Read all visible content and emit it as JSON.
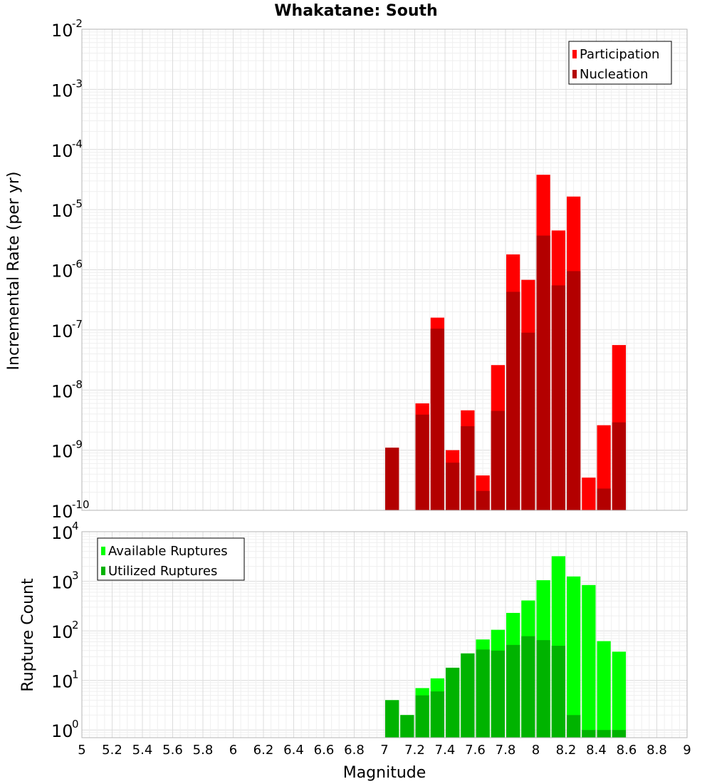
{
  "chart_data": [
    {
      "type": "bar",
      "title": "Whakatane: South",
      "xlabel": "",
      "ylabel": "Incremental Rate (per yr)",
      "yscale": "log",
      "ylim": [
        1e-10,
        0.01
      ],
      "xlim": [
        5,
        9
      ],
      "grid": true,
      "legend_position": "top-right",
      "ytick_labels": [
        {
          "base": "10",
          "exp": "-2"
        },
        {
          "base": "10",
          "exp": "-3"
        },
        {
          "base": "10",
          "exp": "-4"
        },
        {
          "base": "10",
          "exp": "-5"
        },
        {
          "base": "10",
          "exp": "-6"
        },
        {
          "base": "10",
          "exp": "-7"
        },
        {
          "base": "10",
          "exp": "-8"
        },
        {
          "base": "10",
          "exp": "-9"
        },
        {
          "base": "10",
          "exp": "-10"
        }
      ],
      "x": [
        7.0,
        7.1,
        7.2,
        7.3,
        7.4,
        7.5,
        7.6,
        7.7,
        7.8,
        7.9,
        8.0,
        8.1,
        8.2,
        8.3,
        8.4,
        8.5
      ],
      "series": [
        {
          "name": "Participation",
          "color": "#ff0000",
          "values": [
            1.1e-09,
            null,
            6e-09,
            1.6e-07,
            1e-09,
            4.6e-09,
            3.8e-10,
            2.6e-08,
            1.8e-06,
            6.8e-07,
            3.8e-05,
            4.5e-06,
            1.65e-05,
            3.5e-10,
            2.6e-09,
            5.6e-08
          ]
        },
        {
          "name": "Nucleation",
          "color": "#b30000",
          "values": [
            1.1e-09,
            null,
            3.9e-09,
            1.05e-07,
            6.2e-10,
            2.5e-09,
            2.1e-10,
            4.5e-09,
            4.3e-07,
            9e-08,
            3.7e-06,
            5.5e-07,
            9.5e-07,
            null,
            2.3e-10,
            2.9e-09
          ]
        }
      ]
    },
    {
      "type": "bar",
      "title": "",
      "xlabel": "Magnitude",
      "ylabel": "Rupture Count",
      "yscale": "log",
      "ylim": [
        0.7,
        10000
      ],
      "xlim": [
        5,
        9
      ],
      "grid": true,
      "legend_position": "top-left",
      "ytick_labels": [
        {
          "base": "10",
          "exp": "4"
        },
        {
          "base": "10",
          "exp": "3"
        },
        {
          "base": "10",
          "exp": "2"
        },
        {
          "base": "10",
          "exp": "1"
        },
        {
          "base": "10",
          "exp": "0"
        }
      ],
      "xtick_labels": [
        "5",
        "5.2",
        "5.4",
        "5.6",
        "5.8",
        "6",
        "6.2",
        "6.4",
        "6.6",
        "6.8",
        "7",
        "7.2",
        "7.4",
        "7.6",
        "7.8",
        "8",
        "8.2",
        "8.4",
        "8.6",
        "8.8",
        "9"
      ],
      "x": [
        7.0,
        7.1,
        7.2,
        7.3,
        7.4,
        7.5,
        7.6,
        7.7,
        7.8,
        7.9,
        8.0,
        8.1,
        8.2,
        8.3,
        8.4,
        8.5
      ],
      "series": [
        {
          "name": "Available Ruptures",
          "color": "#00ff00",
          "values": [
            4,
            2,
            7,
            11,
            18,
            35,
            67,
            105,
            230,
            410,
            1050,
            3200,
            1250,
            840,
            62,
            38
          ]
        },
        {
          "name": "Utilized Ruptures",
          "color": "#00b300",
          "values": [
            4,
            2,
            5,
            6,
            18,
            35,
            42,
            40,
            52,
            78,
            65,
            50,
            2,
            1,
            1,
            1
          ]
        }
      ]
    }
  ]
}
